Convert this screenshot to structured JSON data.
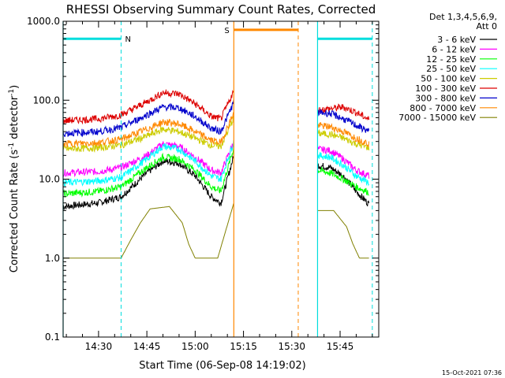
{
  "chart_data": {
    "type": "line",
    "title": "RHESSI Observing Summary Count Rates, Corrected",
    "xlabel": "Start Time (06-Sep-08 14:19:02)",
    "ylabel_main": "Corrected Count Rate (s",
    "ylabel_sup1": "-1",
    "ylabel_mid": " detector",
    "ylabel_sup2": "-1",
    "ylabel_end": ")",
    "yscale": "log",
    "ylim": [
      0.1,
      1000
    ],
    "xlim_minutes": [
      "14:19",
      "15:57"
    ],
    "x_ticks": [
      {
        "label": "14:30",
        "t": "14:30"
      },
      {
        "label": "14:45",
        "t": "14:45"
      },
      {
        "label": "15:00",
        "t": "15:00"
      },
      {
        "label": "15:15",
        "t": "15:15"
      },
      {
        "label": "15:30",
        "t": "15:30"
      },
      {
        "label": "15:45",
        "t": "15:45"
      }
    ],
    "y_ticks": [
      "0.1",
      "1.0",
      "10.0",
      "100.0",
      "1000.0"
    ],
    "legend": {
      "placement": "top-right",
      "header1": "Det 1,3,4,5,6,9,",
      "header2": "Att 0"
    },
    "gaps": [
      {
        "from": "15:12",
        "to": "15:38"
      }
    ],
    "series": [
      {
        "name": "3 - 6 keV",
        "color": "#000000",
        "x": [
          "14:19",
          "14:30",
          "14:37",
          "14:45",
          "14:50",
          "14:55",
          "15:00",
          "15:05",
          "15:08",
          "15:12",
          "15:38",
          "15:42",
          "15:46",
          "15:50",
          "15:54"
        ],
        "y": [
          4.5,
          5,
          6,
          12,
          17,
          16,
          11,
          6,
          5,
          20,
          15,
          14,
          11,
          7,
          4.8
        ]
      },
      {
        "name": "6 - 12 keV",
        "color": "#ff00ff",
        "x": [
          "14:19",
          "14:30",
          "14:37",
          "14:45",
          "14:50",
          "14:55",
          "15:00",
          "15:05",
          "15:08",
          "15:12",
          "15:38",
          "15:42",
          "15:46",
          "15:50",
          "15:54"
        ],
        "y": [
          12,
          12.5,
          14,
          20,
          28,
          26,
          19,
          13,
          12,
          30,
          24,
          23,
          18,
          13,
          11
        ]
      },
      {
        "name": "12 - 25 keV",
        "color": "#00ff00",
        "x": [
          "14:19",
          "14:30",
          "14:37",
          "14:45",
          "14:50",
          "14:55",
          "15:00",
          "15:05",
          "15:08",
          "15:12",
          "15:38",
          "15:42",
          "15:46",
          "15:50",
          "15:54"
        ],
        "y": [
          6.5,
          7,
          8,
          14,
          19,
          18,
          13,
          8,
          7,
          25,
          13,
          12,
          10,
          8,
          6.8
        ]
      },
      {
        "name": "25 - 50 keV",
        "color": "#00ffff",
        "x": [
          "14:19",
          "14:30",
          "14:37",
          "14:45",
          "14:50",
          "14:55",
          "15:00",
          "15:05",
          "15:08",
          "15:12",
          "15:38",
          "15:42",
          "15:46",
          "15:50",
          "15:54"
        ],
        "y": [
          9,
          9.5,
          10.5,
          18,
          26,
          24,
          17,
          11,
          10,
          30,
          20,
          19,
          15,
          11,
          9
        ]
      },
      {
        "name": "50 - 100 keV",
        "color": "#cccc00",
        "x": [
          "14:19",
          "14:30",
          "14:37",
          "14:45",
          "14:50",
          "14:55",
          "15:00",
          "15:05",
          "15:08",
          "15:12",
          "15:38",
          "15:42",
          "15:46",
          "15:50",
          "15:54"
        ],
        "y": [
          24,
          25,
          27,
          35,
          43,
          40,
          33,
          27,
          26,
          60,
          38,
          37,
          33,
          28,
          25
        ]
      },
      {
        "name": "100 - 300 keV",
        "color": "#dd0000",
        "x": [
          "14:19",
          "14:30",
          "14:37",
          "14:45",
          "14:50",
          "14:55",
          "15:00",
          "15:05",
          "15:08",
          "15:12",
          "15:38",
          "15:42",
          "15:46",
          "15:50",
          "15:54"
        ],
        "y": [
          55,
          58,
          65,
          95,
          125,
          120,
          90,
          62,
          58,
          130,
          75,
          78,
          82,
          70,
          57
        ]
      },
      {
        "name": "300 - 800 keV",
        "color": "#0000cc",
        "x": [
          "14:19",
          "14:30",
          "14:37",
          "14:45",
          "14:50",
          "14:55",
          "15:00",
          "15:05",
          "15:08",
          "15:12",
          "15:38",
          "15:42",
          "15:46",
          "15:50",
          "15:54"
        ],
        "y": [
          38,
          40,
          45,
          65,
          82,
          80,
          62,
          44,
          40,
          95,
          70,
          68,
          58,
          48,
          40
        ]
      },
      {
        "name": "800 - 7000 keV",
        "color": "#ff8800",
        "x": [
          "14:19",
          "14:30",
          "14:37",
          "14:45",
          "14:50",
          "14:55",
          "15:00",
          "15:05",
          "15:08",
          "15:12",
          "15:38",
          "15:42",
          "15:46",
          "15:50",
          "15:54"
        ],
        "y": [
          28,
          29,
          32,
          43,
          53,
          50,
          40,
          31,
          29,
          70,
          48,
          46,
          40,
          33,
          28
        ]
      },
      {
        "name": "7000 - 15000 keV",
        "color": "#808000",
        "x": [
          "14:19",
          "14:30",
          "14:37",
          "14:40",
          "14:43",
          "14:46",
          "14:52",
          "14:56",
          "14:58",
          "15:00",
          "15:01",
          "15:07",
          "15:12",
          "15:38",
          "15:43",
          "15:47",
          "15:49",
          "15:51",
          "15:54"
        ],
        "y": [
          1,
          1,
          1,
          1.7,
          2.8,
          4.2,
          4.5,
          2.8,
          1.5,
          1,
          1,
          1,
          5,
          4,
          4,
          2.5,
          1.5,
          1,
          1
        ]
      }
    ],
    "annotations": [
      {
        "label": "N",
        "color": "#00dddd",
        "bar_from": "14:19",
        "bar_to": "14:37",
        "y": 600,
        "dashed_at": "14:37"
      },
      {
        "label": "S",
        "color": "#ff8800",
        "bar_from": "15:12",
        "bar_to": "15:32",
        "y": 780,
        "dashed_at": "15:32"
      },
      {
        "label": "",
        "color": "#00dddd",
        "bar_from": "15:38",
        "bar_to": "15:55",
        "y": 600,
        "dashed_at": "15:55"
      }
    ],
    "vertical_lines": [
      {
        "t": "14:19",
        "color": "#00dddd",
        "style": "solid"
      },
      {
        "t": "15:12",
        "color": "#ff8800",
        "style": "solid"
      },
      {
        "t": "15:38",
        "color": "#00dddd",
        "style": "solid"
      }
    ],
    "grid": false
  },
  "footer": {
    "timestamp": "15-Oct-2021 07:36"
  }
}
